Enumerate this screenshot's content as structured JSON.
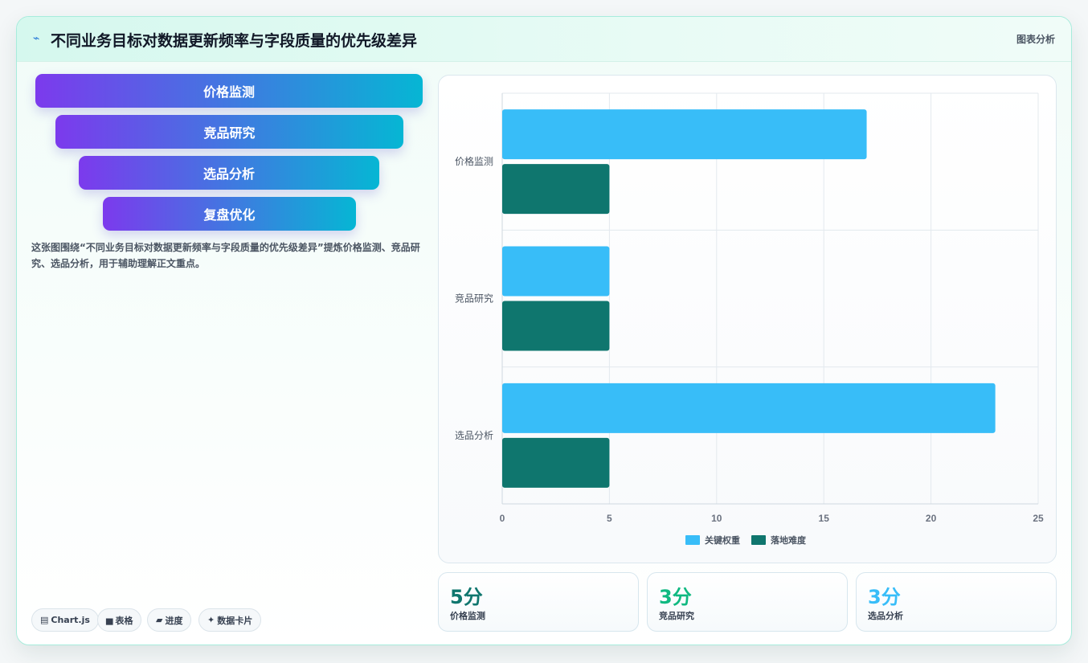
{
  "header": {
    "title": "不同业务目标对数据更新频率与字段质量的优先级差异",
    "tag": "图表分析"
  },
  "funnel": [
    {
      "label": "价格监测"
    },
    {
      "label": "竞品研究"
    },
    {
      "label": "选品分析"
    },
    {
      "label": "复盘优化"
    }
  ],
  "description": "这张图围绕“不同业务目标对数据更新频率与字段质量的优先级差异”提炼价格监测、竞品研究、选品分析，用于辅助理解正文重点。",
  "chips": [
    {
      "icon": "▤",
      "label": "Chart.js"
    },
    {
      "icon": "▅",
      "label": "表格"
    },
    {
      "icon": "▰",
      "label": "进度"
    },
    {
      "icon": "✦",
      "label": "数据卡片"
    }
  ],
  "kpis": [
    {
      "value": "5分",
      "label": "价格监测",
      "color": "#0f766e"
    },
    {
      "value": "3分",
      "label": "竞品研究",
      "color": "#10b981"
    },
    {
      "value": "3分",
      "label": "选品分析",
      "color": "#38bdf8"
    }
  ],
  "chart_data": {
    "type": "bar",
    "orientation": "horizontal",
    "categories": [
      "价格监测",
      "竞品研究",
      "选品分析"
    ],
    "series": [
      {
        "name": "关键权重",
        "values": [
          17,
          5,
          23
        ],
        "color": "#38bdf8"
      },
      {
        "name": "落地难度",
        "values": [
          5,
          5,
          5
        ],
        "color": "#0f766e"
      }
    ],
    "xlim": [
      0,
      25
    ],
    "xticks": [
      0,
      5,
      10,
      15,
      20,
      25
    ],
    "grid": true,
    "legend_position": "bottom"
  }
}
